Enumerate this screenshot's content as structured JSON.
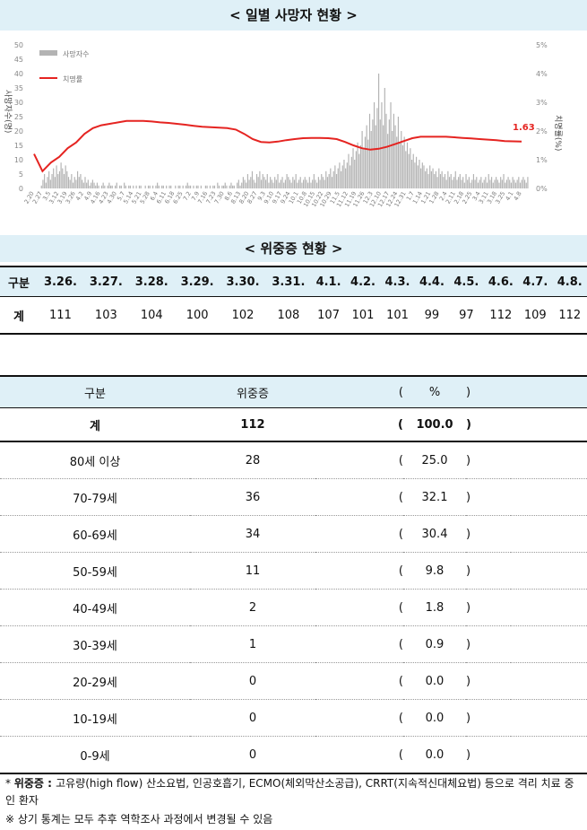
{
  "banners": {
    "daily_deaths": "< 일별 사망자 현황 >",
    "severe": "< 위중증 현황 >"
  },
  "chart_data": {
    "type": "bar+line",
    "title": "< 일별 사망자 현황 >",
    "series": [
      {
        "name": "사망자수",
        "kind": "bar",
        "axis": "left",
        "color": "#b3b3b3"
      },
      {
        "name": "치명률",
        "kind": "line",
        "axis": "right",
        "color": "#e52421"
      }
    ],
    "ylabel_left": "사망자수(명)",
    "ylabel_right": "치명률(%)",
    "y_left_ticks": [
      "50",
      "45",
      "40",
      "35",
      "30",
      "25",
      "20",
      "15",
      "10",
      "5",
      "0"
    ],
    "y_right_ticks": [
      "5%",
      "4%",
      "3%",
      "2%",
      "1%",
      "0%"
    ],
    "ylim_left": [
      0,
      50
    ],
    "ylim_right": [
      0,
      5
    ],
    "x_ticks": [
      "2.20",
      "2.27",
      "3.5",
      "3.12",
      "3.19",
      "3.26",
      "4.2",
      "4.9",
      "4.16",
      "4.23",
      "4.30",
      "5.7",
      "5.14",
      "5.21",
      "5.28",
      "6.4",
      "6.11",
      "6.18",
      "6.25",
      "7.2",
      "7.9",
      "7.16",
      "7.23",
      "7.30",
      "8.6",
      "8.13",
      "8.20",
      "8.27",
      "9.3",
      "9.10",
      "9.17",
      "9.24",
      "10.1",
      "10.8",
      "10.15",
      "10.22",
      "10.29",
      "11.5",
      "11.12",
      "11.19",
      "11.26",
      "12.3",
      "12.10",
      "12.17",
      "12.24",
      "12.31",
      "1.7",
      "1.14",
      "1.21",
      "1.28",
      "2.4",
      "2.11",
      "2.18",
      "2.25",
      "3.4",
      "3.11",
      "3.18",
      "3.25",
      "4.1",
      "4.8"
    ],
    "fatality_line_weekly": [
      1.2,
      0.6,
      0.9,
      1.1,
      1.4,
      1.6,
      1.9,
      2.1,
      2.2,
      2.25,
      2.3,
      2.35,
      2.35,
      2.35,
      2.33,
      2.3,
      2.28,
      2.25,
      2.22,
      2.18,
      2.15,
      2.13,
      2.12,
      2.1,
      2.05,
      1.9,
      1.72,
      1.62,
      1.6,
      1.63,
      1.68,
      1.72,
      1.75,
      1.76,
      1.76,
      1.75,
      1.72,
      1.62,
      1.5,
      1.4,
      1.35,
      1.38,
      1.45,
      1.55,
      1.65,
      1.75,
      1.8,
      1.8,
      1.8,
      1.8,
      1.78,
      1.76,
      1.74,
      1.72,
      1.7,
      1.68,
      1.65,
      1.64,
      1.63
    ],
    "deaths_daily": [
      0,
      1,
      3,
      5,
      2,
      4,
      6,
      3,
      5,
      7,
      4,
      8,
      5,
      6,
      9,
      7,
      5,
      8,
      6,
      4,
      3,
      5,
      2,
      4,
      3,
      6,
      4,
      5,
      3,
      2,
      4,
      2,
      3,
      1,
      2,
      3,
      2,
      1,
      2,
      1,
      0,
      1,
      2,
      1,
      0,
      1,
      2,
      1,
      1,
      0,
      1,
      2,
      0,
      1,
      1,
      0,
      2,
      1,
      0,
      1,
      1,
      0,
      1,
      0,
      1,
      0,
      1,
      1,
      0,
      0,
      1,
      0,
      1,
      1,
      0,
      1,
      0,
      1,
      2,
      1,
      0,
      1,
      1,
      0,
      1,
      0,
      1,
      1,
      0,
      0,
      1,
      0,
      1,
      1,
      0,
      1,
      0,
      1,
      2,
      1,
      1,
      0,
      1,
      0,
      1,
      1,
      0,
      1,
      0,
      0,
      1,
      1,
      0,
      1,
      0,
      1,
      1,
      0,
      2,
      1,
      0,
      1,
      1,
      2,
      1,
      0,
      1,
      2,
      1,
      1,
      0,
      2,
      3,
      1,
      2,
      4,
      3,
      2,
      5,
      3,
      4,
      6,
      3,
      2,
      5,
      4,
      6,
      3,
      5,
      4,
      3,
      5,
      2,
      4,
      3,
      2,
      4,
      3,
      5,
      2,
      3,
      4,
      2,
      3,
      5,
      4,
      3,
      2,
      4,
      3,
      5,
      2,
      3,
      4,
      2,
      3,
      4,
      3,
      2,
      4,
      2,
      3,
      5,
      3,
      2,
      4,
      3,
      5,
      4,
      3,
      6,
      4,
      5,
      7,
      4,
      6,
      8,
      5,
      7,
      9,
      6,
      8,
      10,
      7,
      9,
      12,
      8,
      11,
      14,
      10,
      13,
      16,
      12,
      15,
      20,
      14,
      18,
      22,
      17,
      26,
      20,
      24,
      30,
      22,
      28,
      40,
      24,
      30,
      22,
      35,
      26,
      19,
      24,
      30,
      20,
      26,
      22,
      18,
      25,
      16,
      20,
      15,
      18,
      13,
      16,
      12,
      14,
      10,
      12,
      9,
      11,
      8,
      10,
      7,
      9,
      8,
      6,
      7,
      5,
      8,
      6,
      7,
      5,
      6,
      4,
      7,
      5,
      6,
      4,
      5,
      3,
      6,
      4,
      5,
      3,
      4,
      6,
      3,
      4,
      5,
      3,
      4,
      2,
      5,
      3,
      4,
      2,
      3,
      5,
      3,
      4,
      2,
      3,
      4,
      2,
      3,
      4,
      2,
      5,
      3,
      4,
      2,
      3,
      4,
      3,
      2,
      4,
      3,
      5,
      2,
      3,
      4,
      3,
      2,
      4,
      3,
      2,
      3,
      4,
      2,
      3,
      4,
      3,
      2,
      4
    ],
    "annotation_last_fatality": "1.63"
  },
  "severe_trend": {
    "header_label": "구분",
    "row_label": "계",
    "dates": [
      "3.26.",
      "3.27.",
      "3.28.",
      "3.29.",
      "3.30.",
      "3.31.",
      "4.1.",
      "4.2.",
      "4.3.",
      "4.4.",
      "4.5.",
      "4.6.",
      "4.7.",
      "4.8."
    ],
    "values": [
      "111",
      "103",
      "104",
      "100",
      "102",
      "108",
      "107",
      "101",
      "101",
      "99",
      "97",
      "112",
      "109",
      "112"
    ]
  },
  "severe_by_age": {
    "headers": {
      "group": "구분",
      "count": "위중증",
      "open": "(",
      "pct": "%",
      "close": ")"
    },
    "total": {
      "group": "계",
      "count": "112",
      "open": "(",
      "pct": "100.0",
      "close": ")"
    },
    "rows": [
      {
        "group": "80세 이상",
        "count": "28",
        "open": "(",
        "pct": "25.0",
        "close": ")"
      },
      {
        "group": "70-79세",
        "count": "36",
        "open": "(",
        "pct": "32.1",
        "close": ")"
      },
      {
        "group": "60-69세",
        "count": "34",
        "open": "(",
        "pct": "30.4",
        "close": ")"
      },
      {
        "group": "50-59세",
        "count": "11",
        "open": "(",
        "pct": "9.8",
        "close": ")"
      },
      {
        "group": "40-49세",
        "count": "2",
        "open": "(",
        "pct": "1.8",
        "close": ")"
      },
      {
        "group": "30-39세",
        "count": "1",
        "open": "(",
        "pct": "0.9",
        "close": ")"
      },
      {
        "group": "20-29세",
        "count": "0",
        "open": "(",
        "pct": "0.0",
        "close": ")"
      },
      {
        "group": "10-19세",
        "count": "0",
        "open": "(",
        "pct": "0.0",
        "close": ")"
      },
      {
        "group": "0-9세",
        "count": "0",
        "open": "(",
        "pct": "0.0",
        "close": ")"
      }
    ]
  },
  "notes": {
    "note1_prefix": "* ",
    "note1_bold": "위중증 : ",
    "note1_text": "고유량(high flow) 산소요법, 인공호흡기, ECMO(체외막산소공급), CRRT(지속적신대체요법) 등으로 격리 치료 중인 환자",
    "note2": "※ 상기 통계는 모두 추후 역학조사 과정에서 변경될 수 있음"
  }
}
